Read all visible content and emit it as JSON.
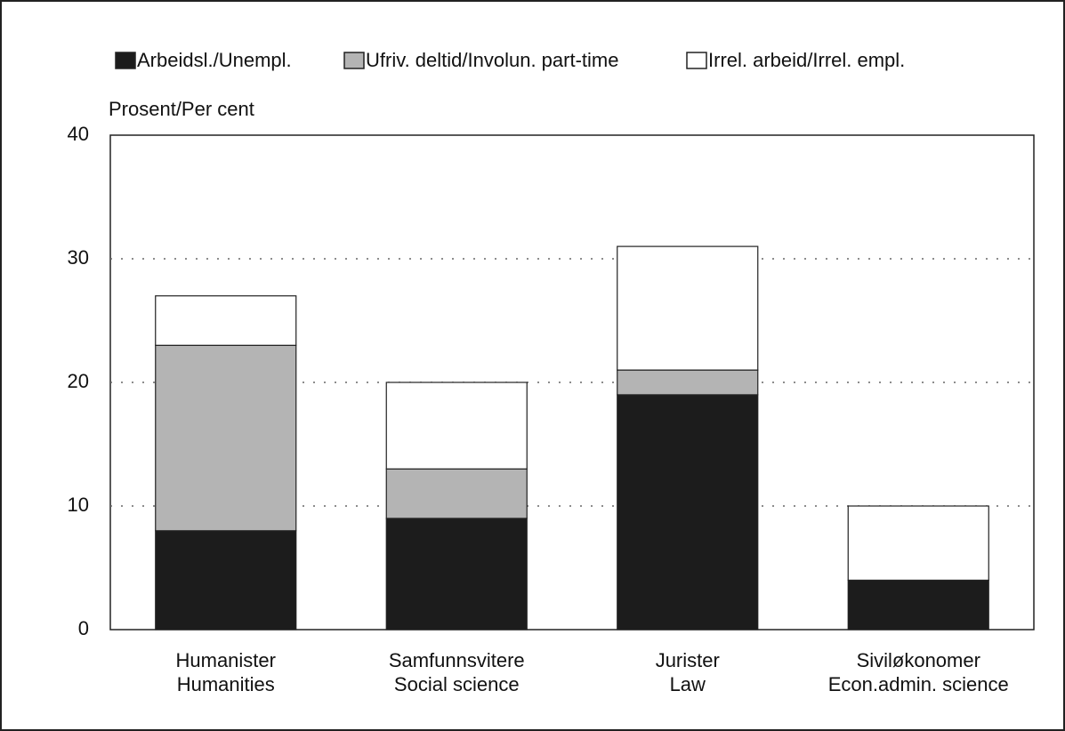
{
  "chart_data": {
    "type": "stacked_bar",
    "y_axis_label": "Prosent/Per cent",
    "categories": [
      [
        "Humanister",
        "Humanities"
      ],
      [
        "Samfunnsvitere",
        "Social science"
      ],
      [
        "Jurister",
        "Law"
      ],
      [
        "Siviløkonomer",
        "Econ.admin. science"
      ]
    ],
    "series": [
      {
        "name": "Arbeidsl./Unempl.",
        "color": "#1c1c1c",
        "values": [
          8,
          9,
          19,
          4
        ]
      },
      {
        "name": "Ufriv. deltid/Involun. part-time",
        "color": "#b4b4b4",
        "values": [
          15,
          4,
          2,
          0
        ]
      },
      {
        "name": "Irrel. arbeid/Irrel. empl.",
        "color": "#ffffff",
        "values": [
          4,
          7,
          10,
          6
        ]
      }
    ],
    "ylim": [
      0,
      40
    ],
    "yticks": [
      0,
      10,
      20,
      30,
      40
    ],
    "grid": true,
    "legend": "top"
  }
}
